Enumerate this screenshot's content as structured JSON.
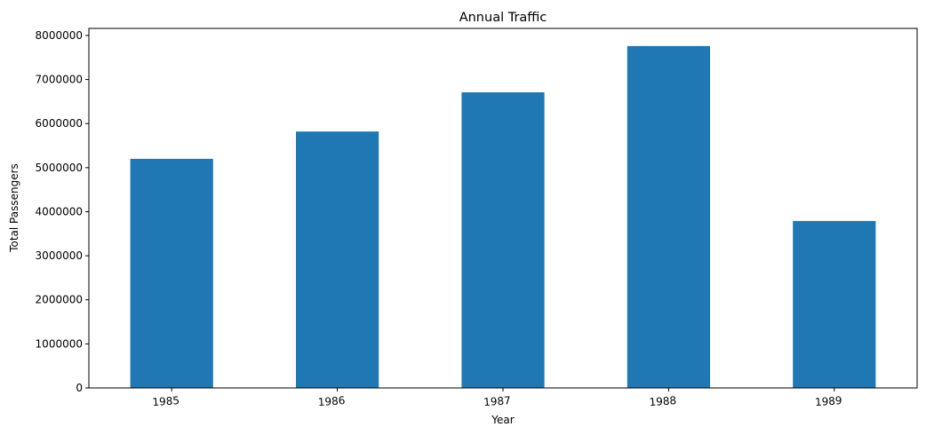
{
  "chart_data": {
    "type": "bar",
    "title": "Annual Traffic",
    "xlabel": "Year",
    "ylabel": "Total Passengers",
    "categories": [
      "1985",
      "1986",
      "1987",
      "1988",
      "1989"
    ],
    "values": [
      5200000,
      5820000,
      6710000,
      7760000,
      3790000
    ],
    "ylim": [
      0,
      8160000
    ],
    "yticks": [
      0,
      1000000,
      2000000,
      3000000,
      4000000,
      5000000,
      6000000,
      7000000,
      8000000
    ],
    "ytick_labels": [
      "0",
      "1000000",
      "2000000",
      "3000000",
      "4000000",
      "5000000",
      "6000000",
      "7000000",
      "8000000"
    ],
    "bar_color": "#1f77b4",
    "grid": false,
    "legend": false
  }
}
